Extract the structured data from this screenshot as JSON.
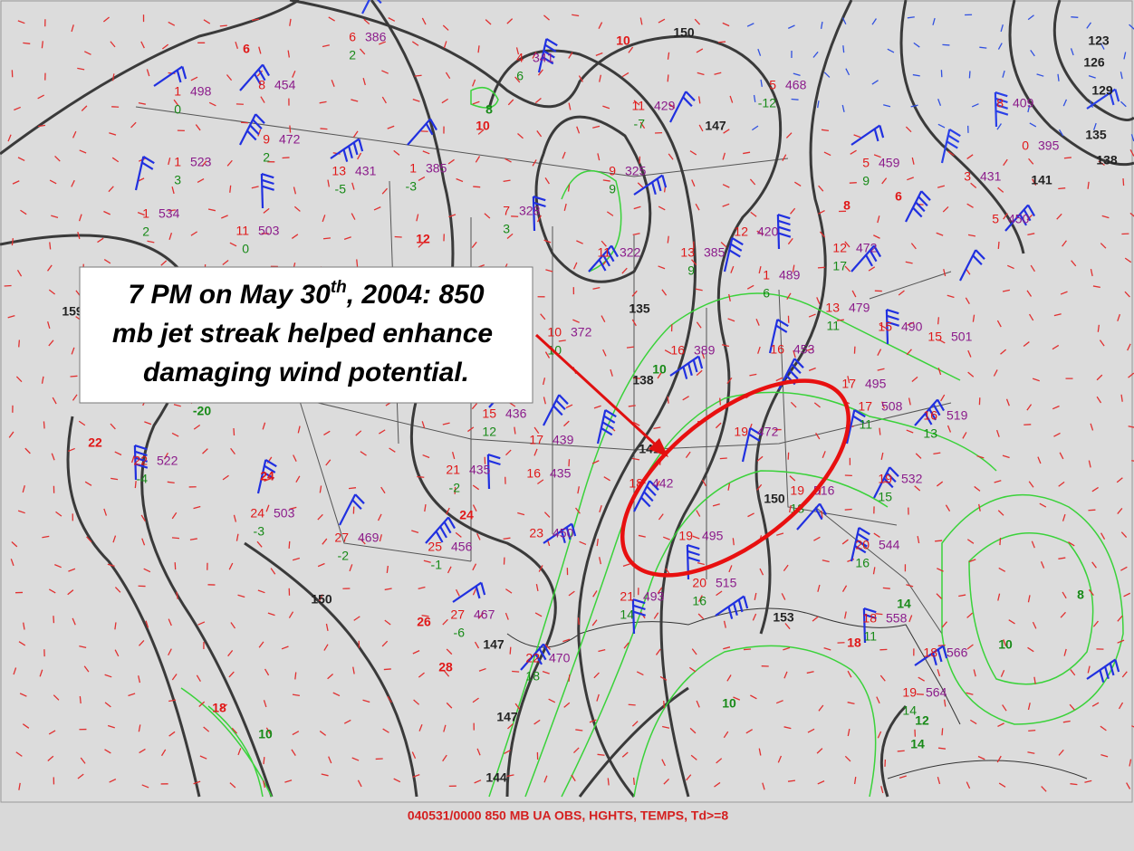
{
  "annotation": {
    "line1_pre": "7 PM on May 30",
    "line1_sup": "th",
    "line1_post": ", 2004:  850",
    "line2": "mb jet streak helped enhance",
    "line3": "damaging wind potential."
  },
  "caption": "040531/0000 850 MB UA OBS, HGHTS, TEMPS, Td>=8",
  "stations": [
    {
      "t": "1",
      "h": "498",
      "td": "0"
    },
    {
      "t": "8",
      "h": "454"
    },
    {
      "t": "9",
      "h": "472",
      "td": "2"
    },
    {
      "t": "1",
      "h": "523",
      "td": "3"
    },
    {
      "t": "1",
      "h": "534",
      "td": "2"
    },
    {
      "t": "11",
      "h": "503",
      "td": "0"
    },
    {
      "t": "13",
      "h": "431",
      "td": "-5"
    },
    {
      "t": "1",
      "h": "385",
      "td": "-3"
    },
    {
      "t": "6",
      "h": "386",
      "td": "2"
    },
    {
      "t": "4",
      "h": "341",
      "td": "6"
    },
    {
      "t": "7",
      "h": "328",
      "td": "3"
    },
    {
      "t": "9",
      "h": "325",
      "td": "9"
    },
    {
      "t": "11",
      "h": "322"
    },
    {
      "t": "11",
      "h": "429",
      "td": "-7"
    },
    {
      "t": "13",
      "h": "385",
      "td": "9"
    },
    {
      "t": "12",
      "h": "420"
    },
    {
      "t": "5",
      "h": "468",
      "td": "-12"
    },
    {
      "t": "5",
      "h": "459",
      "td": "9"
    },
    {
      "t": "12",
      "h": "472",
      "td": "17"
    },
    {
      "t": "1",
      "h": "489",
      "td": "6"
    },
    {
      "t": "13",
      "h": "479",
      "td": "11"
    },
    {
      "t": "15",
      "h": "490"
    },
    {
      "t": "16",
      "h": "389"
    },
    {
      "t": "16",
      "h": "453"
    },
    {
      "t": "17",
      "h": "495"
    },
    {
      "t": "10",
      "h": "372",
      "td": "10"
    },
    {
      "t": "15",
      "h": "436",
      "td": "12"
    },
    {
      "t": "17",
      "h": "439"
    },
    {
      "t": "21",
      "h": "435",
      "td": "-2"
    },
    {
      "t": "16",
      "h": "435"
    },
    {
      "t": "23",
      "h": "450"
    },
    {
      "t": "25",
      "h": "456",
      "td": "-1"
    },
    {
      "t": "27",
      "h": "469",
      "td": "-2"
    },
    {
      "t": "24",
      "h": "503",
      "td": "-3"
    },
    {
      "t": "22",
      "h": "522",
      "td": "-4"
    },
    {
      "t": "27",
      "h": "467",
      "td": "-6"
    },
    {
      "t": "22",
      "h": "470",
      "td": "18"
    },
    {
      "t": "18",
      "h": "442"
    },
    {
      "t": "19",
      "h": "472"
    },
    {
      "t": "19",
      "h": "495"
    },
    {
      "t": "20",
      "h": "515",
      "td": "16"
    },
    {
      "t": "21",
      "h": "493",
      "td": "14"
    },
    {
      "t": "19",
      "h": "516",
      "td": "18"
    },
    {
      "t": "19",
      "h": "532",
      "td": "15"
    },
    {
      "t": "20",
      "h": "544",
      "td": "16"
    },
    {
      "t": "18",
      "h": "558",
      "td": "11"
    },
    {
      "t": "18",
      "h": "566"
    },
    {
      "t": "19",
      "h": "564",
      "td": "14"
    },
    {
      "t": "16",
      "h": "519",
      "td": "13"
    },
    {
      "t": "17",
      "h": "508",
      "td": "11"
    },
    {
      "t": "15",
      "h": "501"
    },
    {
      "t": "3",
      "h": "431"
    },
    {
      "t": "5",
      "h": "450"
    },
    {
      "t": "0",
      "h": "395"
    },
    {
      "t": "8",
      "h": "409"
    }
  ],
  "height_labels": [
    "150",
    "147",
    "135",
    "138",
    "141",
    "150",
    "147",
    "147",
    "144",
    "153",
    "150",
    "123",
    "126",
    "129",
    "135",
    "138",
    "159",
    "141"
  ],
  "temp_labels": [
    "10",
    "6",
    "12",
    "22",
    "24",
    "24",
    "26",
    "28",
    "18",
    "8",
    "10",
    "6",
    "18"
  ],
  "dew_labels": [
    "8",
    "10",
    "8",
    "10",
    "10",
    "14",
    "12",
    "14",
    "10",
    "-20"
  ]
}
